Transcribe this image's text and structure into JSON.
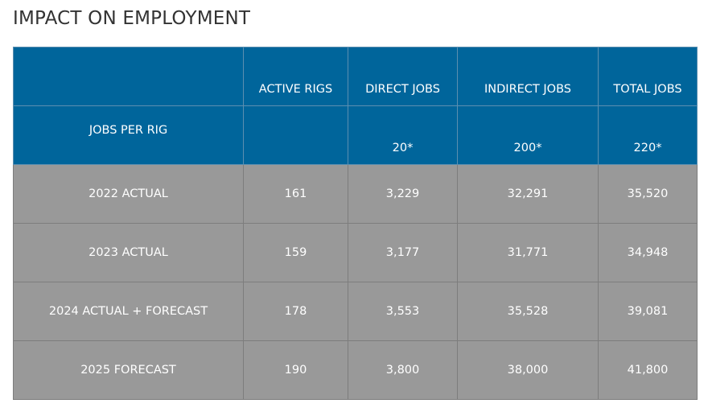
{
  "header": {
    "title": "IMPACT ON EMPLOYMENT"
  },
  "table": {
    "columns": [
      "ACTIVE RIGS",
      "DIRECT JOBS",
      "INDIRECT JOBS",
      "TOTAL JOBS"
    ],
    "jobs_per_rig": {
      "label": "JOBS PER RIG",
      "values": [
        "20*",
        "200*",
        "220*"
      ]
    },
    "rows": [
      [
        "2022 ACTUAL",
        "161",
        "3,229",
        "32,291",
        "35,520"
      ],
      [
        "2023 ACTUAL",
        "159",
        "3,177",
        "31,771",
        "34,948"
      ],
      [
        "2024 ACTUAL + FORECAST",
        "178",
        "3,553",
        "35,528",
        "39,081"
      ],
      [
        "2025 FORECAST",
        "190",
        "3,800",
        "38,000",
        "41,800"
      ]
    ]
  }
}
